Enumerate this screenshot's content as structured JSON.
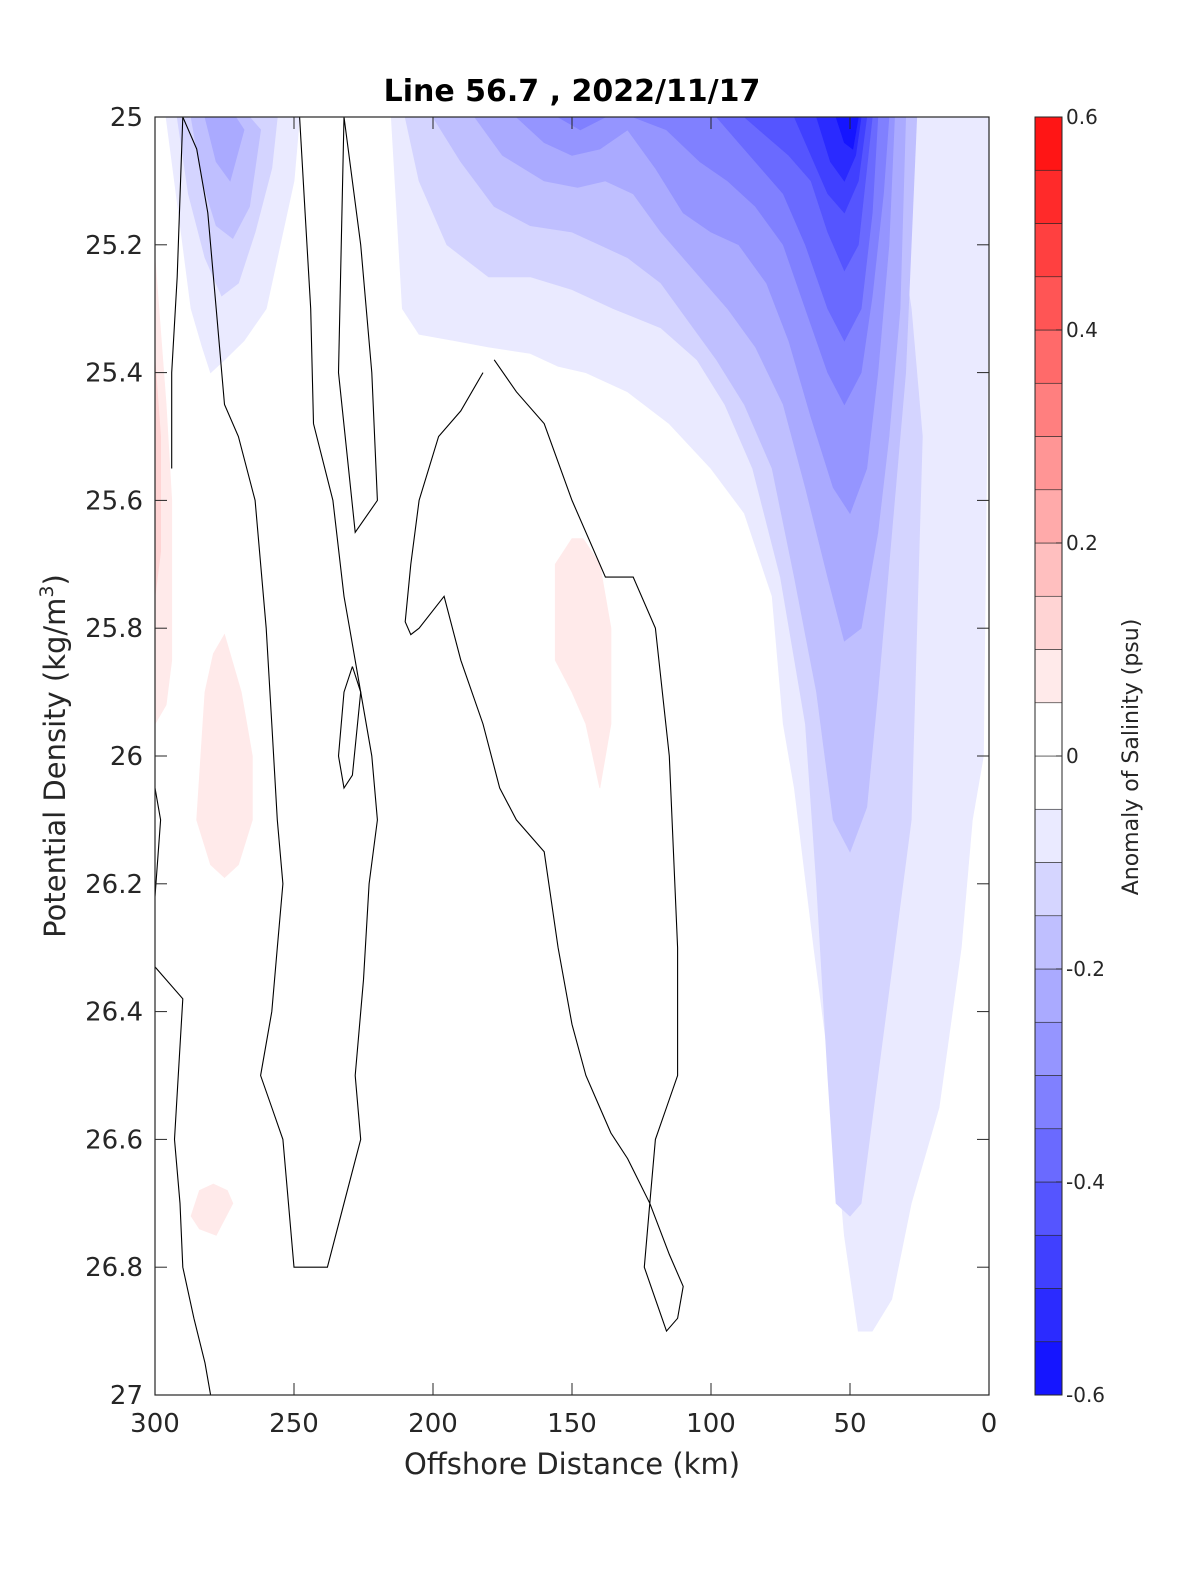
{
  "chart_data": {
    "type": "heatmap",
    "title": "Line 56.7 , 2022/11/17",
    "xlabel": "Offshore Distance (km)",
    "ylabel": "Potential Density (kg/m",
    "ylabel_superscript": "3",
    "ylabel_suffix": ")",
    "xlim": [
      300,
      0
    ],
    "ylim": [
      25,
      27
    ],
    "x_reversed": true,
    "y_reversed": true,
    "grid": false,
    "x_ticks": [
      {
        "value": 300,
        "label": "300"
      },
      {
        "value": 250,
        "label": "250"
      },
      {
        "value": 200,
        "label": "200"
      },
      {
        "value": 150,
        "label": "150"
      },
      {
        "value": 100,
        "label": "100"
      },
      {
        "value": 50,
        "label": "50"
      },
      {
        "value": 0,
        "label": "0"
      }
    ],
    "y_ticks": [
      {
        "value": 25,
        "label": "25"
      },
      {
        "value": 25.2,
        "label": "25.2"
      },
      {
        "value": 25.4,
        "label": "25.4"
      },
      {
        "value": 25.6,
        "label": "25.6"
      },
      {
        "value": 25.8,
        "label": "25.8"
      },
      {
        "value": 26,
        "label": "26"
      },
      {
        "value": 26.2,
        "label": "26.2"
      },
      {
        "value": 26.4,
        "label": "26.4"
      },
      {
        "value": 26.6,
        "label": "26.6"
      },
      {
        "value": 26.8,
        "label": "26.8"
      },
      {
        "value": 27,
        "label": "27"
      }
    ],
    "colorbar": {
      "label": "Anomaly of Salinity (psu)",
      "range": [
        -0.6,
        0.6
      ],
      "step": 0.05,
      "tick_labels": [
        {
          "value": 0.6,
          "label": "0.6"
        },
        {
          "value": 0.4,
          "label": "0.4"
        },
        {
          "value": 0.2,
          "label": "0.2"
        },
        {
          "value": 0,
          "label": "0"
        },
        {
          "value": -0.2,
          "label": "-0.2"
        },
        {
          "value": -0.4,
          "label": "-0.4"
        },
        {
          "value": -0.6,
          "label": "-0.6"
        }
      ],
      "colormap": "blue-white-red"
    },
    "filled_regions": [
      {
        "level": -0.05,
        "x": [
          296,
          293,
          290,
          287,
          283,
          280,
          275,
          268,
          260,
          255,
          250,
          248,
          252,
          256,
          262,
          270,
          278,
          285,
          292
        ],
        "y": [
          25.0,
          25.1,
          25.2,
          25.3,
          25.36,
          25.4,
          25.38,
          25.35,
          25.3,
          25.2,
          25.1,
          25.0,
          25.0,
          25.0,
          25.0,
          25.0,
          25.0,
          25.0,
          25.0
        ]
      },
      {
        "level": -0.1,
        "x": [
          292,
          288,
          282,
          276,
          270,
          264,
          258,
          256,
          262,
          272,
          282,
          290
        ],
        "y": [
          25.0,
          25.12,
          25.22,
          25.28,
          25.26,
          25.18,
          25.08,
          25.0,
          25.0,
          25.0,
          25.0,
          25.0
        ]
      },
      {
        "level": -0.15,
        "x": [
          287,
          283,
          278,
          272,
          266,
          262,
          266,
          275,
          284
        ],
        "y": [
          25.0,
          25.1,
          25.17,
          25.19,
          25.14,
          25.02,
          25.0,
          25.0,
          25.0
        ]
      },
      {
        "level": -0.2,
        "x": [
          282,
          278,
          273,
          268,
          271,
          278
        ],
        "y": [
          25.0,
          25.07,
          25.1,
          25.02,
          25.0,
          25.0
        ]
      },
      {
        "level": -0.05,
        "x": [
          215,
          213,
          211,
          205,
          192,
          180,
          165,
          155,
          145,
          130,
          115,
          100,
          88,
          78,
          74,
          70,
          63,
          57,
          52,
          47,
          42,
          35,
          28,
          18,
          10,
          6,
          2,
          0,
          0,
          22,
          60,
          100,
          150,
          200
        ],
        "y": [
          25.0,
          25.15,
          25.3,
          25.34,
          25.35,
          25.36,
          25.37,
          25.39,
          25.4,
          25.43,
          25.48,
          25.55,
          25.62,
          25.75,
          25.95,
          26.05,
          26.3,
          26.5,
          26.75,
          26.9,
          26.9,
          26.85,
          26.7,
          26.55,
          26.3,
          26.1,
          26.0,
          25.2,
          25.0,
          25.0,
          25.0,
          25.0,
          25.0,
          25.0
        ]
      },
      {
        "level": -0.1,
        "x": [
          210,
          205,
          195,
          180,
          165,
          150,
          135,
          118,
          105,
          95,
          85,
          75,
          66,
          62,
          58,
          55,
          50,
          46,
          40,
          34,
          28,
          24,
          28,
          35,
          45,
          60,
          80,
          110,
          150,
          190
        ],
        "y": [
          25.0,
          25.1,
          25.2,
          25.25,
          25.25,
          25.27,
          25.3,
          25.33,
          25.38,
          25.45,
          25.55,
          25.72,
          25.95,
          26.2,
          26.5,
          26.7,
          26.72,
          26.7,
          26.5,
          26.3,
          26.1,
          25.5,
          25.3,
          25.1,
          25.0,
          25.0,
          25.0,
          25.0,
          25.0,
          25.0
        ]
      },
      {
        "level": -0.15,
        "x": [
          200,
          190,
          178,
          165,
          150,
          140,
          130,
          118,
          108,
          98,
          88,
          78,
          70,
          62,
          56,
          50,
          44,
          40,
          36,
          30,
          26,
          40,
          70,
          110,
          160
        ],
        "y": [
          25.0,
          25.07,
          25.14,
          25.17,
          25.18,
          25.2,
          25.22,
          25.26,
          25.32,
          25.38,
          25.45,
          25.55,
          25.72,
          25.9,
          26.1,
          26.15,
          26.08,
          25.9,
          25.7,
          25.4,
          25.0,
          25.0,
          25.0,
          25.0,
          25.0
        ]
      },
      {
        "level": -0.2,
        "x": [
          185,
          175,
          160,
          148,
          138,
          128,
          118,
          106,
          94,
          84,
          74,
          66,
          58,
          52,
          46,
          40,
          36,
          32,
          30,
          45,
          80,
          130
        ],
        "y": [
          25.0,
          25.06,
          25.1,
          25.11,
          25.1,
          25.12,
          25.18,
          25.24,
          25.3,
          25.36,
          25.45,
          25.58,
          25.72,
          25.82,
          25.8,
          25.65,
          25.5,
          25.3,
          25.0,
          25.0,
          25.0,
          25.0
        ]
      },
      {
        "level": -0.25,
        "x": [
          170,
          160,
          150,
          140,
          130,
          120,
          110,
          100,
          90,
          80,
          72,
          64,
          56,
          50,
          44,
          40,
          36,
          34,
          50,
          90,
          140
        ],
        "y": [
          25.0,
          25.04,
          25.06,
          25.05,
          25.02,
          25.08,
          25.15,
          25.18,
          25.2,
          25.26,
          25.35,
          25.47,
          25.58,
          25.62,
          25.55,
          25.4,
          25.2,
          25.0,
          25.0,
          25.0,
          25.0
        ]
      },
      {
        "level": -0.3,
        "x": [
          155,
          147,
          138,
          128,
          116,
          104,
          94,
          84,
          74,
          66,
          58,
          52,
          46,
          42,
          38,
          36,
          60,
          110
        ],
        "y": [
          25.0,
          25.02,
          25.0,
          25.0,
          25.02,
          25.07,
          25.1,
          25.14,
          25.2,
          25.3,
          25.4,
          25.45,
          25.4,
          25.28,
          25.12,
          25.0,
          25.0,
          25.0
        ]
      },
      {
        "level": -0.35,
        "x": [
          98,
          90,
          82,
          74,
          66,
          58,
          52,
          46,
          42,
          40,
          60,
          80
        ],
        "y": [
          25.0,
          25.04,
          25.08,
          25.12,
          25.2,
          25.3,
          25.35,
          25.3,
          25.15,
          25.0,
          25.0,
          25.0
        ]
      },
      {
        "level": -0.4,
        "x": [
          88,
          80,
          72,
          64,
          58,
          52,
          47,
          44,
          42,
          60,
          75
        ],
        "y": [
          25.0,
          25.03,
          25.06,
          25.1,
          25.18,
          25.24,
          25.2,
          25.08,
          25.0,
          25.0,
          25.0
        ]
      },
      {
        "level": -0.45,
        "x": [
          70,
          64,
          58,
          52,
          47,
          44,
          55
        ],
        "y": [
          25.0,
          25.06,
          25.12,
          25.15,
          25.1,
          25.0,
          25.0
        ]
      },
      {
        "level": -0.5,
        "x": [
          62,
          57,
          52,
          48,
          46,
          54
        ],
        "y": [
          25.0,
          25.07,
          25.1,
          25.06,
          25.0,
          25.0
        ]
      },
      {
        "level": -0.55,
        "x": [
          55,
          52,
          49,
          47,
          50
        ],
        "y": [
          25.0,
          25.04,
          25.05,
          25.0,
          25.0
        ]
      },
      {
        "level": 0.05,
        "x": [
          300,
          296,
          294,
          294,
          296,
          300
        ],
        "y": [
          25.22,
          25.45,
          25.6,
          25.85,
          25.92,
          25.95
        ]
      },
      {
        "level": 0.1,
        "x": [
          300,
          298,
          298,
          300
        ],
        "y": [
          25.38,
          25.5,
          25.68,
          25.75
        ]
      },
      {
        "level": 0.05,
        "x": [
          275,
          269,
          265,
          265,
          270,
          275,
          280,
          285,
          282,
          279
        ],
        "y": [
          25.81,
          25.9,
          26.0,
          26.1,
          26.17,
          26.19,
          26.17,
          26.1,
          25.9,
          25.84
        ]
      },
      {
        "level": 0.05,
        "x": [
          146,
          140,
          136,
          136,
          140,
          145,
          150,
          156,
          156,
          150
        ],
        "y": [
          25.66,
          25.7,
          25.8,
          25.95,
          26.05,
          25.95,
          25.9,
          25.85,
          25.7,
          25.66
        ]
      },
      {
        "level": 0.05,
        "x": [
          279,
          274,
          272,
          278,
          284,
          287,
          284
        ],
        "y": [
          26.67,
          26.68,
          26.7,
          26.75,
          26.74,
          26.72,
          26.68
        ]
      }
    ],
    "zero_contours": [
      {
        "x": [
          290,
          292,
          294,
          294
        ],
        "y": [
          25.0,
          25.25,
          25.4,
          25.55
        ]
      },
      {
        "x": [
          300,
          298,
          300
        ],
        "y": [
          26.05,
          26.1,
          26.22
        ]
      },
      {
        "x": [
          300,
          290,
          293,
          291,
          290,
          286,
          282,
          280,
          278,
          276,
          273,
          270
        ],
        "y": [
          26.33,
          26.38,
          26.6,
          26.7,
          26.8,
          26.88,
          26.95,
          27.0,
          27.0,
          27.0,
          27.0,
          27.0
        ]
      },
      {
        "x": [
          248,
          246,
          244,
          243,
          236,
          232,
          230,
          226,
          222,
          220,
          223,
          225,
          228,
          226,
          232,
          238,
          245,
          250,
          254,
          258,
          262,
          258,
          256,
          254,
          256,
          258,
          260,
          264,
          270,
          275,
          278,
          281,
          285,
          290
        ],
        "y": [
          25.0,
          25.15,
          25.3,
          25.48,
          25.6,
          25.75,
          25.8,
          25.9,
          26.0,
          26.1,
          26.2,
          26.35,
          26.5,
          26.6,
          26.7,
          26.8,
          26.8,
          26.8,
          26.6,
          26.55,
          26.5,
          26.4,
          26.3,
          26.2,
          26.1,
          25.95,
          25.8,
          25.6,
          25.5,
          25.45,
          25.3,
          25.15,
          25.05,
          25.0
        ]
      },
      {
        "x": [
          232,
          226,
          222,
          220,
          228,
          234,
          232
        ],
        "y": [
          25.0,
          25.2,
          25.4,
          25.6,
          25.65,
          25.4,
          25.0
        ]
      },
      {
        "x": [
          229,
          232,
          234,
          232,
          229,
          226,
          229
        ],
        "y": [
          25.86,
          25.9,
          26.0,
          26.05,
          26.03,
          25.9,
          25.86
        ]
      },
      {
        "x": [
          178,
          170,
          160,
          150,
          138,
          128,
          120,
          115,
          112,
          112,
          116,
          120,
          122,
          124,
          120,
          116,
          112,
          110,
          115,
          122,
          130,
          136,
          140,
          145,
          150,
          155,
          160,
          170,
          176,
          182,
          190,
          196,
          205,
          208,
          210,
          208,
          205,
          198,
          190,
          182
        ],
        "y": [
          25.38,
          25.43,
          25.48,
          25.6,
          25.72,
          25.72,
          25.8,
          26.0,
          26.3,
          26.5,
          26.55,
          26.6,
          26.7,
          26.8,
          26.85,
          26.9,
          26.88,
          26.83,
          26.78,
          26.7,
          26.63,
          26.59,
          26.55,
          26.5,
          26.42,
          26.3,
          26.15,
          26.1,
          26.05,
          25.95,
          25.85,
          25.75,
          25.8,
          25.81,
          25.79,
          25.7,
          25.6,
          25.5,
          25.46,
          25.4
        ]
      }
    ]
  }
}
